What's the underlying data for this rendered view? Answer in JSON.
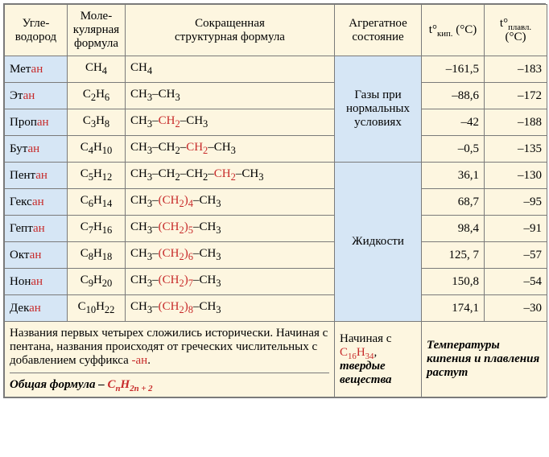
{
  "headers": {
    "name": "Угле-\nводород",
    "mol": "Моле-\nкулярная\nформула",
    "struct": "Сокращенная\nструктурная формула",
    "state": "Агрегатное\nсостояние",
    "kip_pre": "t°",
    "kip_sub": "кип.",
    "kip_post": " (°C)",
    "plav_pre": "t°",
    "plav_sub": "плавл.",
    "plav_post": " (°C)"
  },
  "rows": [
    {
      "name_b": "Мет",
      "name_r": "ан",
      "mol_pre": "C",
      "mol_s1": "",
      "mol_mid": "H",
      "mol_s2": "4",
      "str_html": "CH<sub>4</sub>",
      "kip": "–161,5",
      "plav": "–183",
      "group": "gas"
    },
    {
      "name_b": "Эт",
      "name_r": "ан",
      "mol_pre": "C",
      "mol_s1": "2",
      "mol_mid": "H",
      "mol_s2": "6",
      "str_html": "CH<sub>3</sub>–CH<sub>3</sub>",
      "kip": "–88,6",
      "plav": "–172",
      "group": "gas"
    },
    {
      "name_b": "Проп",
      "name_r": "ан",
      "mol_pre": "C",
      "mol_s1": "3",
      "mol_mid": "H",
      "mol_s2": "8",
      "str_html": "CH<sub>3</sub>–<span class='red'>CH<sub>2</sub></span>–CH<sub>3</sub>",
      "kip": "–42",
      "plav": "–188",
      "group": "gas"
    },
    {
      "name_b": "Бут",
      "name_r": "ан",
      "mol_pre": "C",
      "mol_s1": "4",
      "mol_mid": "H",
      "mol_s2": "10",
      "str_html": "CH<sub>3</sub>–CH<sub>2</sub>–<span class='red'>CH<sub>2</sub></span>–CH<sub>3</sub>",
      "kip": "–0,5",
      "plav": "–135",
      "group": "gas"
    },
    {
      "name_b": "Пент",
      "name_r": "ан",
      "mol_pre": "C",
      "mol_s1": "5",
      "mol_mid": "H",
      "mol_s2": "12",
      "str_html": "CH<sub>3</sub>–CH<sub>2</sub>–CH<sub>2</sub>–<span class='red'>CH<sub>2</sub></span>–CH<sub>3</sub>",
      "kip": "36,1",
      "plav": "–130",
      "group": "liq"
    },
    {
      "name_b": "Гекс",
      "name_r": "ан",
      "mol_pre": "C",
      "mol_s1": "6",
      "mol_mid": "H",
      "mol_s2": "14",
      "str_html": "CH<sub>3</sub>–<span class='red'>(CH<sub>2</sub>)<sub>4</sub></span>–CH<sub>3</sub>",
      "kip": "68,7",
      "plav": "–95",
      "group": "liq"
    },
    {
      "name_b": "Гепт",
      "name_r": "ан",
      "mol_pre": "C",
      "mol_s1": "7",
      "mol_mid": "H",
      "mol_s2": "16",
      "str_html": "CH<sub>3</sub>–<span class='red'>(CH<sub>2</sub>)<sub>5</sub></span>–CH<sub>3</sub>",
      "kip": "98,4",
      "plav": "–91",
      "group": "liq"
    },
    {
      "name_b": "Окт",
      "name_r": "ан",
      "mol_pre": "C",
      "mol_s1": "8",
      "mol_mid": "H",
      "mol_s2": "18",
      "str_html": "CH<sub>3</sub>–<span class='red'>(CH<sub>2</sub>)<sub>6</sub></span>–CH<sub>3</sub>",
      "kip": "125, 7",
      "plav": "–57",
      "group": "liq"
    },
    {
      "name_b": "Нон",
      "name_r": "ан",
      "mol_pre": "C",
      "mol_s1": "9",
      "mol_mid": "H",
      "mol_s2": "20",
      "str_html": "CH<sub>3</sub>–<span class='red'>(CH<sub>2</sub>)<sub>7</sub></span>–CH<sub>3</sub>",
      "kip": "150,8",
      "plav": "–54",
      "group": "liq"
    },
    {
      "name_b": "Дек",
      "name_r": "ан",
      "mol_pre": "C",
      "mol_s1": "10",
      "mol_mid": "H",
      "mol_s2": "22",
      "str_html": "CH<sub>3</sub>–<span class='red'>(CH<sub>2</sub>)<sub>8</sub></span>–CH<sub>3</sub>",
      "kip": "174,1",
      "plav": "–30",
      "group": "liq"
    }
  ],
  "state_gas": "Газы при нормальных условиях",
  "state_liq": "Жидкости",
  "footer": {
    "left1": "Названия первых четырех сложились исторически. Начиная с пентана, названия происходят от греческих числительных с добавлением суффикса ",
    "left_suffix": "-ан",
    "left_end": ".",
    "general_label": "Общая  формула – ",
    "general_C": "C",
    "general_n": "n",
    "general_H": "H",
    "general_2n2": "2n + 2",
    "state_pre": "Начиная с ",
    "state_C": "C",
    "state_s1": "16",
    "state_H": "H",
    "state_s2": "34",
    "state_post1": ",",
    "state_post2": "твердые вещества",
    "temps_note": "Температуры кипения и плавления растут"
  },
  "colors": {
    "header_bg": "#fdf6e0",
    "name_bg": "#d6e6f5",
    "red": "#c72a2a",
    "border": "#7a7a7a"
  }
}
